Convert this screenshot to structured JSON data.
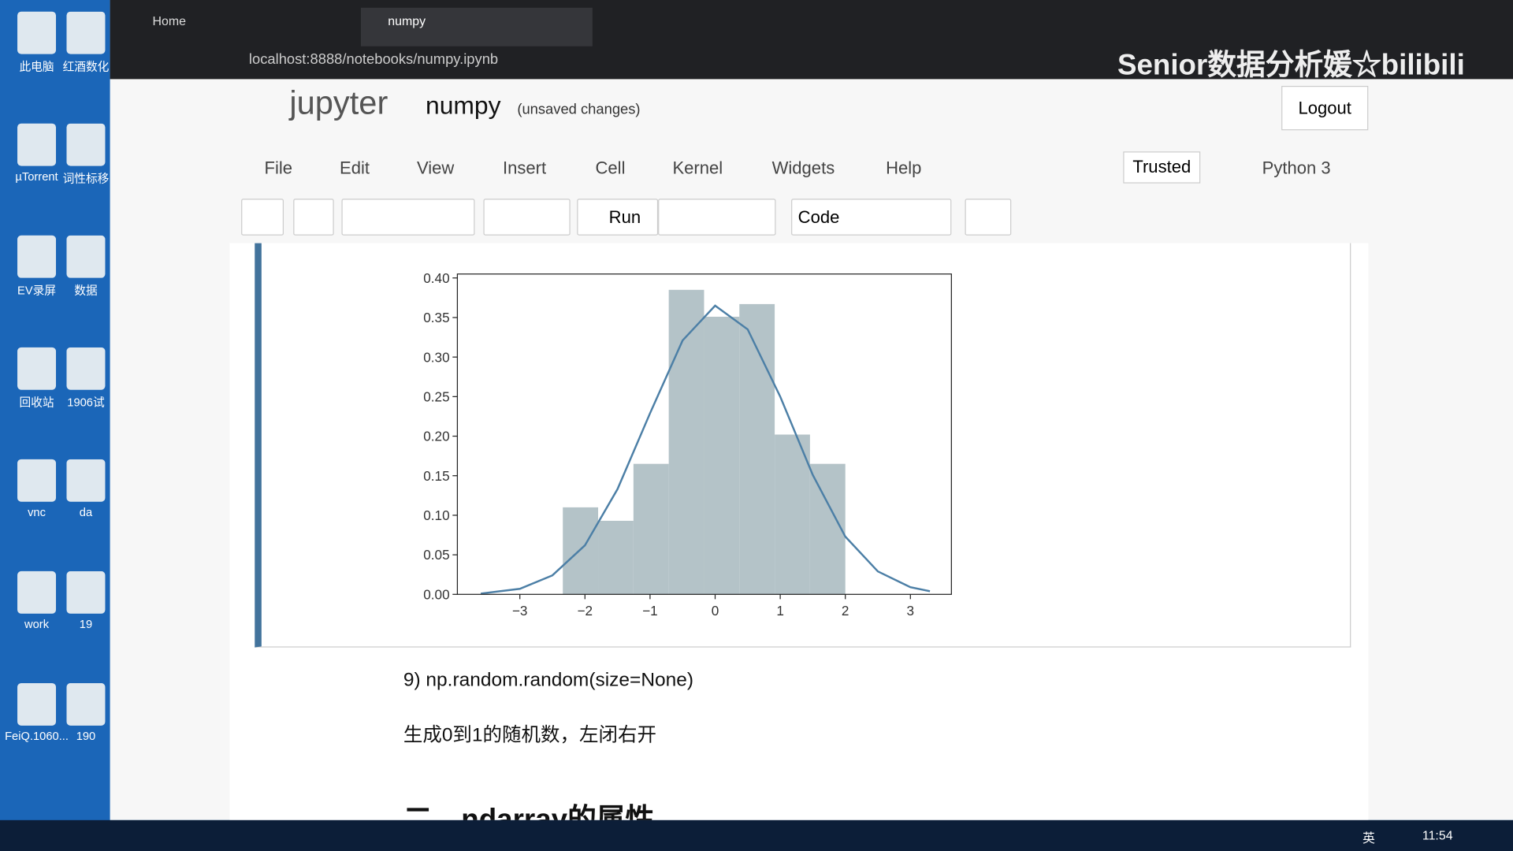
{
  "desktop": {
    "icons": [
      "此电脑",
      "µTorrent",
      "EV录屏",
      "回收站",
      "vnc",
      "work",
      "FeiQ.1060..."
    ],
    "icons2": [
      "红酒数化",
      "词性标移",
      "数据",
      "1906试",
      "da",
      "19",
      "190"
    ]
  },
  "browser": {
    "tabs": [
      "Home",
      "numpy"
    ],
    "url": "localhost:8888/notebooks/numpy.ipynb",
    "watermark": "Senior数据分析媛☆bilibili"
  },
  "jupyter": {
    "logo": "jupyter",
    "notebook": "numpy",
    "status": "(unsaved changes)",
    "logout": "Logout",
    "menu": [
      "File",
      "Edit",
      "View",
      "Insert",
      "Cell",
      "Kernel",
      "Widgets",
      "Help"
    ],
    "trusted": "Trusted",
    "kernel": "Python 3",
    "run": "Run",
    "cell_type": "Code"
  },
  "markdown": {
    "item": "9) np.random.random(size=None)",
    "desc": "生成0到1的随机数，左闭右开",
    "heading": "二、ndarray的属性"
  },
  "taskbar": {
    "lang": "英",
    "time": "11:54"
  },
  "chart_data": {
    "type": "histogram",
    "bins": [
      -2.34,
      -1.7975,
      -1.255,
      -0.7125,
      -0.17,
      0.3725,
      0.915,
      1.4575,
      2.0
    ],
    "values": [
      0.11,
      0.093,
      0.165,
      0.385,
      0.351,
      0.367,
      0.202,
      0.165
    ],
    "color": "#b4c3c8",
    "kde": {
      "x": [
        -3.6,
        -3,
        -2.5,
        -2,
        -1.5,
        -1,
        -0.5,
        0,
        0.5,
        1,
        1.5,
        2,
        2.5,
        3,
        3.3
      ],
      "values": [
        0.001,
        0.007,
        0.024,
        0.062,
        0.133,
        0.229,
        0.321,
        0.365,
        0.335,
        0.25,
        0.151,
        0.073,
        0.029,
        0.009,
        0.004
      ],
      "color": "#4c7fa6"
    },
    "xlim": [
      -3.96,
      3.63
    ],
    "ylim": [
      0,
      0.405
    ],
    "xticks": [
      {
        "value": -3,
        "label": "−3"
      },
      {
        "value": -2,
        "label": "−2"
      },
      {
        "value": -1,
        "label": "−1"
      },
      0,
      1,
      2,
      3
    ],
    "yticks": [
      {
        "value": 0,
        "label": "0.00"
      },
      {
        "value": 0.05,
        "label": "0.05"
      },
      {
        "value": 0.1,
        "label": "0.10"
      },
      {
        "value": 0.15,
        "label": "0.15"
      },
      {
        "value": 0.2,
        "label": "0.20"
      },
      {
        "value": 0.25,
        "label": "0.25"
      },
      {
        "value": 0.3,
        "label": "0.30"
      },
      {
        "value": 0.35,
        "label": "0.35"
      },
      {
        "value": 0.4,
        "label": "0.40"
      }
    ]
  }
}
